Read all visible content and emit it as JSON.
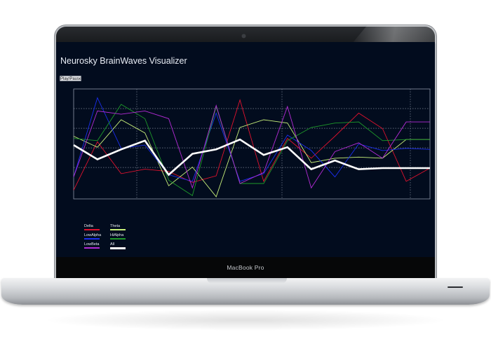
{
  "device": {
    "brand_label": "MacBook Pro"
  },
  "app": {
    "title": "Neurosky BrainWaves Visualizer",
    "play_button_label": "Play/Pause"
  },
  "colors": {
    "screen_background": "#020c1e",
    "Delta": "#e0122e",
    "Theta": "#c8f07a",
    "LowAlpha": "#1b2ef0",
    "HiAlpha": "#1e9a2a",
    "LowBeta": "#b42bd6",
    "All": "#ffffff"
  },
  "legend": [
    {
      "name": "Delta",
      "color": "#e0122e"
    },
    {
      "name": "Theta",
      "color": "#c8f07a"
    },
    {
      "name": "LowAlpha",
      "color": "#1b2ef0"
    },
    {
      "name": "HiAlpha",
      "color": "#1e9a2a"
    },
    {
      "name": "LowBeta",
      "color": "#b42bd6"
    },
    {
      "name": "All",
      "color": "#ffffff"
    }
  ],
  "chart_data": {
    "type": "line",
    "title": "",
    "xlabel": "",
    "ylabel": "",
    "x": [
      0,
      1,
      2,
      3,
      4,
      5,
      6,
      7,
      8,
      9,
      10,
      11,
      12,
      13,
      14,
      15
    ],
    "ylim": [
      0,
      100
    ],
    "grid": true,
    "legend_position": "bottom-left",
    "series": [
      {
        "name": "Delta",
        "color": "#e0122e",
        "values": [
          8,
          52,
          23,
          27,
          25,
          15,
          21,
          90,
          16,
          55,
          37,
          57,
          78,
          64,
          16,
          28
        ]
      },
      {
        "name": "Theta",
        "color": "#c8f07a",
        "values": [
          57,
          47,
          72,
          60,
          12,
          29,
          2,
          65,
          72,
          69,
          33,
          37,
          38,
          37,
          54,
          54
        ]
      },
      {
        "name": "LowAlpha",
        "color": "#1b2ef0",
        "values": [
          20,
          92,
          46,
          49,
          22,
          16,
          78,
          16,
          23,
          58,
          44,
          20,
          50,
          44,
          46,
          45
        ]
      },
      {
        "name": "HiAlpha",
        "color": "#1e9a2a",
        "values": [
          55,
          53,
          86,
          73,
          17,
          3,
          84,
          14,
          14,
          53,
          65,
          69,
          70,
          53,
          54,
          54
        ]
      },
      {
        "name": "LowBeta",
        "color": "#b42bd6",
        "values": [
          20,
          80,
          77,
          80,
          73,
          10,
          85,
          14,
          24,
          84,
          10,
          43,
          51,
          37,
          70,
          70
        ]
      },
      {
        "name": "All",
        "color": "#ffffff",
        "values": [
          49,
          36,
          45,
          53,
          22,
          41,
          45,
          54,
          40,
          47,
          27,
          35,
          27,
          28,
          28,
          28
        ]
      }
    ]
  }
}
